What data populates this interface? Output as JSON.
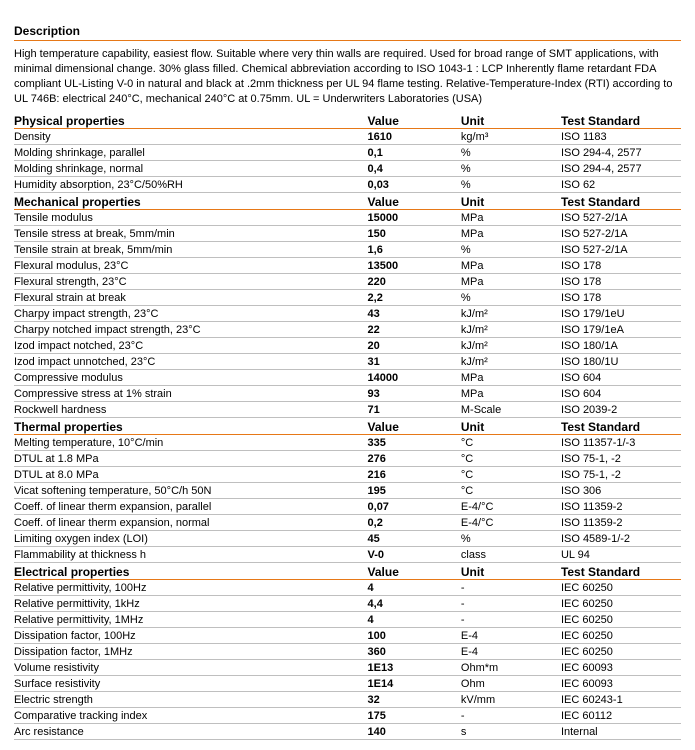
{
  "description": {
    "title": "Description",
    "text": "High temperature capability, easiest flow. Suitable where very thin walls are required. Used for broad range of SMT applications, with minimal dimensional change. 30% glass filled. Chemical abbreviation according to ISO 1043-1 : LCP Inherently flame retardant FDA compliant UL-Listing V-0 in natural and black at .2mm thickness per UL 94 flame testing. Relative-Temperature-Index (RTI) according to UL 746B: electrical 240°C, mechanical 240°C at 0.75mm. UL = Underwriters Laboratories (USA)"
  },
  "headers": {
    "value": "Value",
    "unit": "Unit",
    "std": "Test Standard"
  },
  "sections": [
    {
      "title": "Physical properties",
      "rows": [
        {
          "name": "Density",
          "value": "1610",
          "unit": "kg/m³",
          "std": "ISO 1183"
        },
        {
          "name": "Molding shrinkage, parallel",
          "value": "0,1",
          "unit": "%",
          "std": "ISO 294-4, 2577"
        },
        {
          "name": "Molding shrinkage, normal",
          "value": "0,4",
          "unit": "%",
          "std": "ISO 294-4, 2577"
        },
        {
          "name": "Humidity absorption, 23°C/50%RH",
          "value": "0,03",
          "unit": "%",
          "std": "ISO 62"
        }
      ]
    },
    {
      "title": "Mechanical properties",
      "rows": [
        {
          "name": "Tensile modulus",
          "value": "15000",
          "unit": "MPa",
          "std": "ISO 527-2/1A"
        },
        {
          "name": "Tensile stress at break, 5mm/min",
          "value": "150",
          "unit": "MPa",
          "std": "ISO 527-2/1A"
        },
        {
          "name": "Tensile strain at break, 5mm/min",
          "value": "1,6",
          "unit": "%",
          "std": "ISO 527-2/1A"
        },
        {
          "name": "Flexural modulus, 23°C",
          "value": "13500",
          "unit": "MPa",
          "std": "ISO 178"
        },
        {
          "name": "Flexural strength, 23°C",
          "value": "220",
          "unit": "MPa",
          "std": "ISO 178"
        },
        {
          "name": "Flexural strain at break",
          "value": "2,2",
          "unit": "%",
          "std": "ISO 178"
        },
        {
          "name": "Charpy impact strength, 23°C",
          "value": "43",
          "unit": "kJ/m²",
          "std": "ISO 179/1eU"
        },
        {
          "name": "Charpy notched impact strength, 23°C",
          "value": "22",
          "unit": "kJ/m²",
          "std": "ISO 179/1eA"
        },
        {
          "name": "Izod impact notched, 23°C",
          "value": "20",
          "unit": "kJ/m²",
          "std": "ISO 180/1A"
        },
        {
          "name": "Izod impact unnotched, 23°C",
          "value": "31",
          "unit": "kJ/m²",
          "std": "ISO 180/1U"
        },
        {
          "name": "Compressive modulus",
          "value": "14000",
          "unit": "MPa",
          "std": "ISO 604"
        },
        {
          "name": "Compressive stress at 1% strain",
          "value": "93",
          "unit": "MPa",
          "std": "ISO 604"
        },
        {
          "name": "Rockwell hardness",
          "value": "71",
          "unit": "M-Scale",
          "std": "ISO 2039-2"
        }
      ]
    },
    {
      "title": "Thermal properties",
      "rows": [
        {
          "name": "Melting temperature, 10°C/min",
          "value": "335",
          "unit": "°C",
          "std": "ISO 11357-1/-3"
        },
        {
          "name": "DTUL at 1.8 MPa",
          "value": "276",
          "unit": "°C",
          "std": "ISO 75-1, -2"
        },
        {
          "name": "DTUL at 8.0 MPa",
          "value": "216",
          "unit": "°C",
          "std": "ISO 75-1, -2"
        },
        {
          "name": "Vicat softening temperature, 50°C/h 50N",
          "value": "195",
          "unit": "°C",
          "std": "ISO 306"
        },
        {
          "name": "Coeff. of linear therm expansion, parallel",
          "value": "0,07",
          "unit": "E-4/°C",
          "std": "ISO 11359-2"
        },
        {
          "name": "Coeff. of linear therm expansion, normal",
          "value": "0,2",
          "unit": "E-4/°C",
          "std": "ISO 11359-2"
        },
        {
          "name": "Limiting oxygen index (LOI)",
          "value": "45",
          "unit": "%",
          "std": "ISO 4589-1/-2"
        },
        {
          "name": "Flammability at thickness h",
          "value": "V-0",
          "unit": "class",
          "std": "UL 94"
        }
      ]
    },
    {
      "title": "Electrical properties",
      "rows": [
        {
          "name": "Relative permittivity, 100Hz",
          "value": "4",
          "unit": "-",
          "std": "IEC 60250"
        },
        {
          "name": "Relative permittivity, 1kHz",
          "value": "4,4",
          "unit": "-",
          "std": "IEC 60250"
        },
        {
          "name": "Relative permittivity, 1MHz",
          "value": "4",
          "unit": "-",
          "std": "IEC 60250"
        },
        {
          "name": "Dissipation factor, 100Hz",
          "value": "100",
          "unit": "E-4",
          "std": "IEC 60250"
        },
        {
          "name": "Dissipation factor, 1MHz",
          "value": "360",
          "unit": "E-4",
          "std": "IEC 60250"
        },
        {
          "name": "Volume resistivity",
          "value": "1E13",
          "unit": "Ohm*m",
          "std": "IEC 60093"
        },
        {
          "name": "Surface resistivity",
          "value": "1E14",
          "unit": "Ohm",
          "std": "IEC 60093"
        },
        {
          "name": "Electric strength",
          "value": "32",
          "unit": "kV/mm",
          "std": "IEC 60243-1"
        },
        {
          "name": "Comparative tracking index",
          "value": "175",
          "unit": "-",
          "std": "IEC 60112"
        },
        {
          "name": "Arc resistance",
          "value": "140",
          "unit": "s",
          "std": "Internal"
        }
      ]
    }
  ]
}
